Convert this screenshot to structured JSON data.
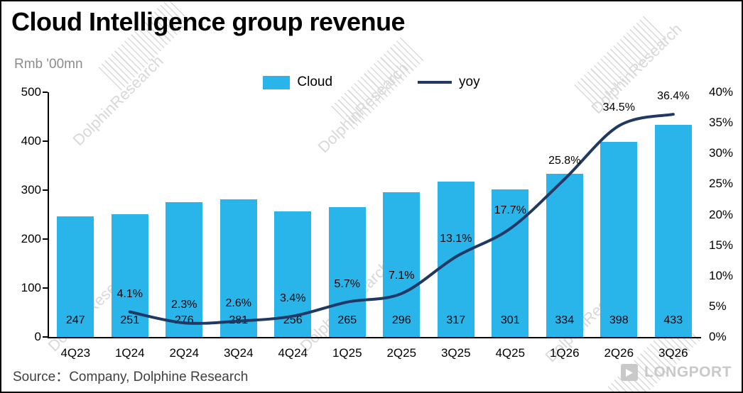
{
  "title": "Cloud Intelligence group revenue",
  "unit_label": "Rmb '00mn",
  "legend": {
    "bar": "Cloud",
    "line": "yoy"
  },
  "source": "Source：Company, Dolphine Research",
  "watermark": "DolphinResearch",
  "brand": "LONGPORT",
  "colors": {
    "bar": "#29b5e9",
    "line": "#1f3864"
  },
  "chart_data": {
    "type": "bar+line",
    "title": "Cloud Intelligence group revenue",
    "unit": "Rmb '00mn",
    "categories": [
      "4Q23",
      "1Q24",
      "2Q24",
      "3Q24",
      "4Q24",
      "1Q25",
      "2Q25",
      "3Q25",
      "4Q25",
      "1Q26",
      "2Q26",
      "3Q26"
    ],
    "series": [
      {
        "name": "Cloud",
        "type": "bar",
        "axis": "left",
        "values": [
          247,
          251,
          276,
          281,
          256,
          265,
          296,
          317,
          301,
          334,
          398,
          433
        ]
      },
      {
        "name": "yoy",
        "type": "line",
        "axis": "right",
        "values": [
          null,
          4.1,
          2.3,
          2.6,
          3.4,
          5.7,
          7.1,
          13.1,
          17.7,
          25.8,
          34.5,
          36.4
        ],
        "labels": [
          null,
          "4.1%",
          "2.3%",
          "2.6%",
          "3.4%",
          "5.7%",
          "7.1%",
          "13.1%",
          "17.7%",
          "25.8%",
          "34.5%",
          "36.4%"
        ]
      }
    ],
    "left_axis": {
      "min": 0,
      "max": 500,
      "step": 100,
      "ticks": [
        "0",
        "100",
        "200",
        "300",
        "400",
        "500"
      ]
    },
    "right_axis": {
      "min": 0,
      "max": 40,
      "step": 5,
      "ticks": [
        "0%",
        "5%",
        "10%",
        "15%",
        "20%",
        "25%",
        "30%",
        "35%",
        "40%"
      ]
    },
    "legend_position": "top-center",
    "grid": false
  }
}
